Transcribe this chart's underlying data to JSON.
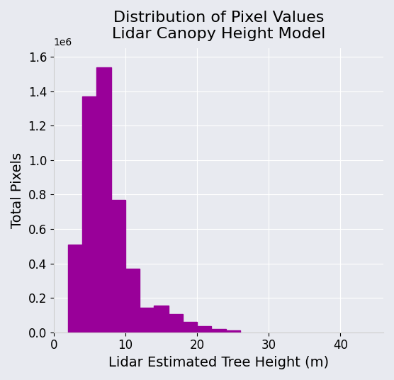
{
  "title": "Distribution of Pixel Values\nLidar Canopy Height Model",
  "xlabel": "Lidar Estimated Tree Height (m)",
  "ylabel": "Total Pixels",
  "bar_color": "#990099",
  "background_color": "#e8eaf0",
  "bin_edges": [
    2,
    4,
    6,
    8,
    10,
    12,
    14,
    16,
    18,
    20,
    22,
    24,
    26
  ],
  "bar_heights": [
    510000,
    1370000,
    1540000,
    770000,
    370000,
    145000,
    155000,
    105000,
    60000,
    35000,
    20000,
    10000
  ],
  "xlim": [
    0,
    46
  ],
  "ylim": [
    0,
    1650000
  ],
  "xticks": [
    0,
    10,
    20,
    30,
    40
  ],
  "yticks": [
    0,
    200000,
    400000,
    600000,
    800000,
    1000000,
    1200000,
    1400000,
    1600000
  ],
  "title_fontsize": 16,
  "label_fontsize": 14,
  "tick_fontsize": 12
}
